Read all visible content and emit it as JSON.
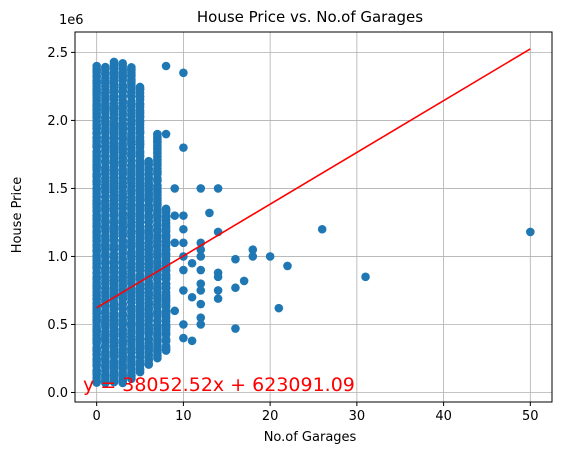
{
  "chart_data": {
    "type": "scatter",
    "title": "House Price vs. No.of Garages",
    "xlabel": "No.of Garages",
    "ylabel": "House Price",
    "y_offset_text": "1e6",
    "xlim": [
      -2.5,
      52.5
    ],
    "ylim": [
      -0.07,
      2.65
    ],
    "x_ticks": [
      0,
      10,
      20,
      30,
      40,
      50
    ],
    "y_ticks": [
      0.0,
      0.5,
      1.0,
      1.5,
      2.0,
      2.5
    ],
    "y_tick_labels": [
      "0.0",
      "0.5",
      "1.0",
      "1.5",
      "2.0",
      "2.5"
    ],
    "grid": true,
    "point_color": "#1f77b4",
    "regression": {
      "slope": 38052.52,
      "intercept": 623091.09,
      "x_range": [
        0,
        50
      ],
      "color": "#ff0000",
      "label": "y = 38052.52x + 623091.09"
    },
    "column_ranges": [
      {
        "x": 0,
        "y_min": 0.07,
        "y_max": 2.4
      },
      {
        "x": 1,
        "y_min": 0.07,
        "y_max": 2.4
      },
      {
        "x": 2,
        "y_min": 0.07,
        "y_max": 2.43
      },
      {
        "x": 3,
        "y_min": 0.07,
        "y_max": 2.42
      },
      {
        "x": 4,
        "y_min": 0.1,
        "y_max": 2.4
      },
      {
        "x": 5,
        "y_min": 0.15,
        "y_max": 2.25
      },
      {
        "x": 6,
        "y_min": 0.2,
        "y_max": 1.7
      },
      {
        "x": 7,
        "y_min": 0.25,
        "y_max": 1.9
      },
      {
        "x": 8,
        "y_min": 0.3,
        "y_max": 1.35
      }
    ],
    "points": [
      {
        "x": 8,
        "y": 2.4
      },
      {
        "x": 10,
        "y": 2.35
      },
      {
        "x": 10,
        "y": 1.8
      },
      {
        "x": 7,
        "y": 1.9
      },
      {
        "x": 8,
        "y": 1.9
      },
      {
        "x": 9,
        "y": 1.5
      },
      {
        "x": 9,
        "y": 1.3
      },
      {
        "x": 9,
        "y": 1.1
      },
      {
        "x": 9,
        "y": 0.6
      },
      {
        "x": 10,
        "y": 1.3
      },
      {
        "x": 10,
        "y": 1.2
      },
      {
        "x": 10,
        "y": 1.1
      },
      {
        "x": 10,
        "y": 1.0
      },
      {
        "x": 10,
        "y": 0.9
      },
      {
        "x": 10,
        "y": 0.75
      },
      {
        "x": 10,
        "y": 0.5
      },
      {
        "x": 10,
        "y": 0.4
      },
      {
        "x": 11,
        "y": 0.95
      },
      {
        "x": 11,
        "y": 0.7
      },
      {
        "x": 11,
        "y": 0.38
      },
      {
        "x": 12,
        "y": 1.5
      },
      {
        "x": 12,
        "y": 1.1
      },
      {
        "x": 12,
        "y": 1.05
      },
      {
        "x": 12,
        "y": 1.0
      },
      {
        "x": 12,
        "y": 0.9
      },
      {
        "x": 12,
        "y": 0.8
      },
      {
        "x": 12,
        "y": 0.75
      },
      {
        "x": 12,
        "y": 0.65
      },
      {
        "x": 12,
        "y": 0.55
      },
      {
        "x": 12,
        "y": 0.5
      },
      {
        "x": 13,
        "y": 1.32
      },
      {
        "x": 14,
        "y": 1.5
      },
      {
        "x": 14,
        "y": 1.18
      },
      {
        "x": 14,
        "y": 0.88
      },
      {
        "x": 14,
        "y": 0.85
      },
      {
        "x": 14,
        "y": 0.75
      },
      {
        "x": 14,
        "y": 0.69
      },
      {
        "x": 16,
        "y": 0.98
      },
      {
        "x": 16,
        "y": 0.77
      },
      {
        "x": 16,
        "y": 0.47
      },
      {
        "x": 17,
        "y": 0.82
      },
      {
        "x": 18,
        "y": 1.05
      },
      {
        "x": 18,
        "y": 1.0
      },
      {
        "x": 20,
        "y": 1.0
      },
      {
        "x": 21,
        "y": 0.62
      },
      {
        "x": 22,
        "y": 0.93
      },
      {
        "x": 26,
        "y": 1.2
      },
      {
        "x": 31,
        "y": 0.85
      },
      {
        "x": 50,
        "y": 1.18
      }
    ]
  }
}
